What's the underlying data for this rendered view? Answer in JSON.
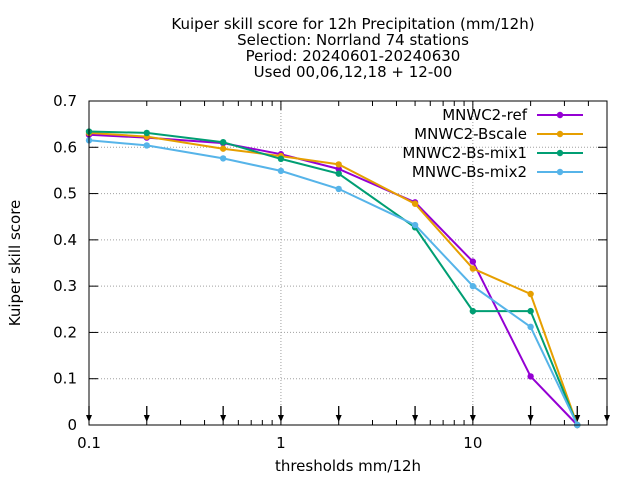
{
  "chart_data": {
    "type": "line",
    "title_lines": [
      "Kuiper skill score  for 12h Precipitation (mm/12h)",
      "Selection: Norrland     74 stations",
      "Period: 20240601-20240630",
      "Used 00,06,12,18 + 12-00"
    ],
    "xlabel": "thresholds mm/12h",
    "ylabel": "Kuiper skill score",
    "x_scale": "log",
    "xlim": [
      0.1,
      50
    ],
    "ylim": [
      0,
      0.7
    ],
    "x_ticks": [
      0.1,
      1,
      10
    ],
    "x_tick_labels": [
      "0.1",
      "1",
      "10"
    ],
    "y_ticks": [
      0,
      0.1,
      0.2,
      0.3,
      0.4,
      0.5,
      0.6,
      0.7
    ],
    "y_tick_labels": [
      "0",
      "0.1",
      "0.2",
      "0.3",
      "0.4",
      "0.5",
      "0.6",
      "0.7"
    ],
    "grid": true,
    "legend_position": "top-right",
    "threshold_markers": [
      0.1,
      0.2,
      0.5,
      1,
      2,
      5,
      10,
      20,
      35,
      50
    ],
    "series": [
      {
        "name": "MNWC2-ref",
        "color": "#9400d3",
        "x": [
          0.1,
          0.2,
          0.5,
          1,
          2,
          5,
          10,
          20,
          35
        ],
        "y": [
          0.627,
          0.621,
          0.609,
          0.585,
          0.553,
          0.481,
          0.353,
          0.105,
          0.0
        ]
      },
      {
        "name": "MNWC2-Bscale",
        "color": "#e69f00",
        "x": [
          0.1,
          0.2,
          0.5,
          1,
          2,
          5,
          10,
          20,
          35
        ],
        "y": [
          0.631,
          0.623,
          0.597,
          0.581,
          0.563,
          0.478,
          0.338,
          0.283,
          0.0
        ]
      },
      {
        "name": "MNWC2-Bs-mix1",
        "color": "#009e73",
        "x": [
          0.1,
          0.2,
          0.5,
          1,
          2,
          5,
          10,
          20,
          35
        ],
        "y": [
          0.634,
          0.631,
          0.611,
          0.575,
          0.543,
          0.427,
          0.246,
          0.246,
          0.0
        ]
      },
      {
        "name": "MNWC-Bs-mix2",
        "color": "#56b4e9",
        "x": [
          0.1,
          0.2,
          0.5,
          1,
          2,
          5,
          10,
          20,
          35
        ],
        "y": [
          0.615,
          0.604,
          0.576,
          0.549,
          0.51,
          0.432,
          0.3,
          0.212,
          0.0
        ]
      }
    ]
  }
}
